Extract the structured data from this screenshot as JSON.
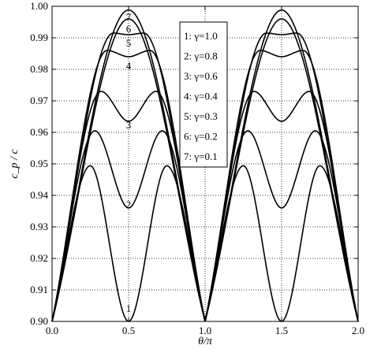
{
  "chart_data": {
    "type": "line",
    "xlabel": "θ/π",
    "ylabel": "c_p / c",
    "xlim": [
      0,
      2
    ],
    "ylim": [
      0.9,
      1.0
    ],
    "x_ticks": [
      "0.0",
      "0.5",
      "1.0",
      "1.5",
      "2.0"
    ],
    "y_ticks": [
      "0.90",
      "0.91",
      "0.92",
      "0.93",
      "0.94",
      "0.95",
      "0.96",
      "0.97",
      "0.98",
      "0.99",
      "1.00"
    ],
    "grid": true,
    "legend_placement": "top-center",
    "series": [
      {
        "name": "1: γ=1.0",
        "label": "1",
        "x": [
          0,
          0.25,
          0.5,
          0.75,
          1.0
        ],
        "y": [
          0.9,
          0.9494,
          0.9,
          0.9494,
          0.9
        ]
      },
      {
        "name": "2: γ=0.8",
        "label": "2",
        "x": [
          0,
          0.28,
          0.5,
          0.72,
          1.0
        ],
        "y": [
          0.9,
          0.9605,
          0.936,
          0.9605,
          0.9
        ]
      },
      {
        "name": "3: γ=0.6",
        "label": "3",
        "x": [
          0,
          0.32,
          0.5,
          0.68,
          1.0
        ],
        "y": [
          0.9,
          0.973,
          0.9635,
          0.973,
          0.9
        ]
      },
      {
        "name": "4: γ=0.4",
        "label": "4",
        "x": [
          0,
          0.36,
          0.5,
          0.64,
          1.0
        ],
        "y": [
          0.9,
          0.986,
          0.984,
          0.986,
          0.9
        ]
      },
      {
        "name": "5: γ=0.3",
        "label": "5",
        "x": [
          0,
          0.4,
          0.5,
          0.6,
          1.0
        ],
        "y": [
          0.9,
          0.9915,
          0.991,
          0.9915,
          0.9
        ]
      },
      {
        "name": "6: γ=0.2",
        "label": "6",
        "x": [
          0,
          0.5,
          1.0
        ],
        "y": [
          0.9,
          0.996,
          0.9
        ]
      },
      {
        "name": "7: γ=0.1",
        "label": "7",
        "x": [
          0,
          0.5,
          1.0
        ],
        "y": [
          0.9,
          0.9988,
          0.9
        ]
      }
    ]
  }
}
